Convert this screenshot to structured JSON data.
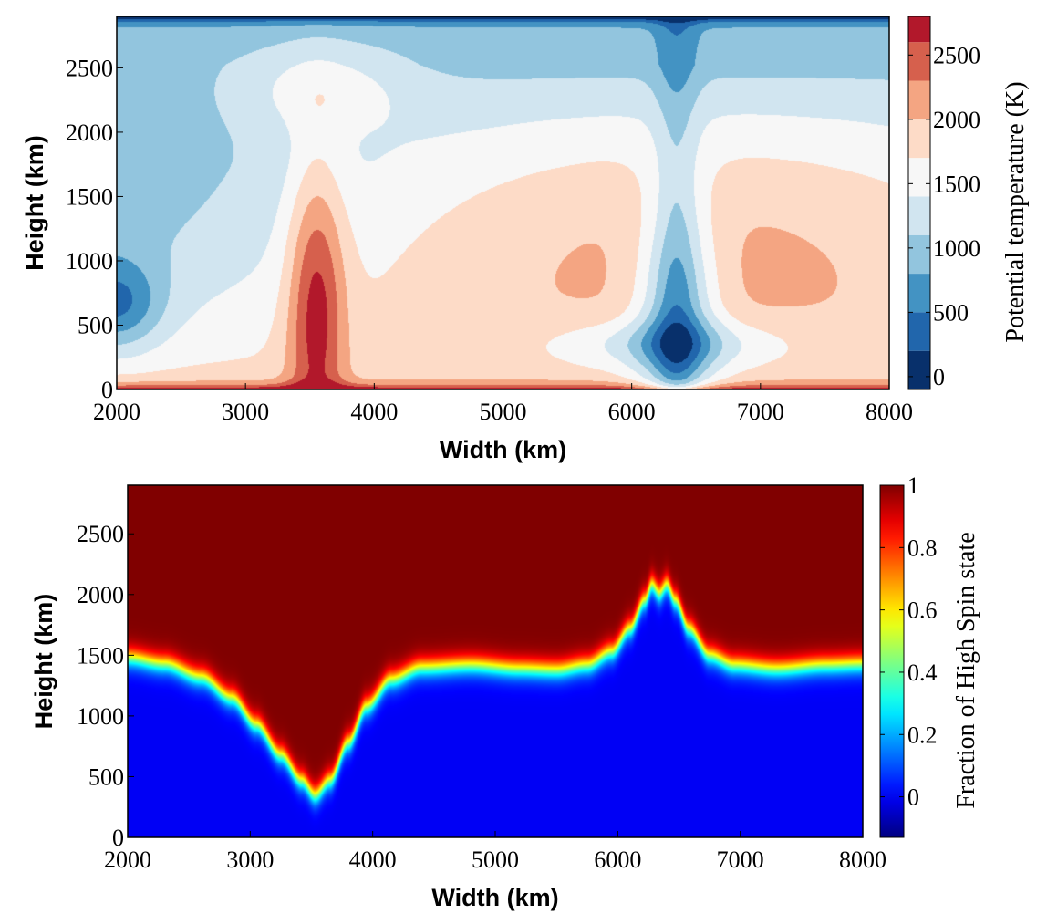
{
  "chart_data": [
    {
      "type": "heatmap",
      "subtype": "filled-contour",
      "xlabel": "Width (km)",
      "ylabel": "Height (km)",
      "xlim": [
        2000,
        8000
      ],
      "ylim": [
        0,
        2900
      ],
      "xticks": [
        2000,
        3000,
        4000,
        5000,
        6000,
        7000,
        8000
      ],
      "yticks": [
        0,
        500,
        1000,
        1500,
        2000,
        2500
      ],
      "colorbar": {
        "label": "Potential temperature (K)",
        "range": [
          -100,
          2800
        ],
        "ticks": [
          0,
          500,
          1000,
          1500,
          2000,
          2500
        ],
        "levels": [
          -100,
          200,
          500,
          800,
          1100,
          1400,
          1700,
          2000,
          2300,
          2600,
          2800
        ],
        "colors": [
          "#08306b",
          "#2166ac",
          "#4393c3",
          "#92c5de",
          "#d1e5f0",
          "#f7f7f7",
          "#fddbc7",
          "#f4a582",
          "#d6604d",
          "#b2182b",
          "#67001f"
        ]
      },
      "features": [
        {
          "kind": "hot-upwelling",
          "x": 3550,
          "y_base": 0,
          "y_top": 1720
        },
        {
          "kind": "hot-layer-top",
          "x_range": [
            3000,
            4100
          ],
          "y": 2300
        },
        {
          "kind": "cold-downwelling",
          "x": 6350,
          "y_base": 250,
          "y_top": 2900
        },
        {
          "kind": "cold-region-edge",
          "x": 2000,
          "y": 650
        }
      ]
    },
    {
      "type": "heatmap",
      "xlabel": "Width (km)",
      "ylabel": "Height (km)",
      "xlim": [
        2000,
        8000
      ],
      "ylim": [
        0,
        2900
      ],
      "xticks": [
        2000,
        3000,
        4000,
        5000,
        6000,
        7000,
        8000
      ],
      "yticks": [
        0,
        500,
        1000,
        1500,
        2000,
        2500
      ],
      "colorbar": {
        "label": "Fraction of High Spin state",
        "range": [
          -0.13,
          1.0
        ],
        "ticks": [
          0,
          0.2,
          0.4,
          0.6,
          0.8,
          1
        ],
        "tick_labels": [
          "0",
          "0.2",
          "0.4",
          "0.6",
          "0.8",
          "1"
        ],
        "colormap": "jet"
      },
      "low_value": 0,
      "high_value": 1,
      "transition_width_km": 150,
      "transition_height": [
        {
          "x": 2000,
          "y": 1480
        },
        {
          "x": 2300,
          "y": 1430
        },
        {
          "x": 2600,
          "y": 1320
        },
        {
          "x": 2850,
          "y": 1150
        },
        {
          "x": 3050,
          "y": 930
        },
        {
          "x": 3250,
          "y": 680
        },
        {
          "x": 3420,
          "y": 470
        },
        {
          "x": 3530,
          "y": 350
        },
        {
          "x": 3650,
          "y": 470
        },
        {
          "x": 3800,
          "y": 780
        },
        {
          "x": 3950,
          "y": 1080
        },
        {
          "x": 4150,
          "y": 1300
        },
        {
          "x": 4400,
          "y": 1400
        },
        {
          "x": 4800,
          "y": 1420
        },
        {
          "x": 5200,
          "y": 1390
        },
        {
          "x": 5500,
          "y": 1380
        },
        {
          "x": 5750,
          "y": 1420
        },
        {
          "x": 5950,
          "y": 1530
        },
        {
          "x": 6100,
          "y": 1720
        },
        {
          "x": 6220,
          "y": 1950
        },
        {
          "x": 6280,
          "y": 2080
        },
        {
          "x": 6340,
          "y": 2010
        },
        {
          "x": 6400,
          "y": 2080
        },
        {
          "x": 6470,
          "y": 1950
        },
        {
          "x": 6580,
          "y": 1720
        },
        {
          "x": 6750,
          "y": 1500
        },
        {
          "x": 6950,
          "y": 1420
        },
        {
          "x": 7300,
          "y": 1390
        },
        {
          "x": 7700,
          "y": 1420
        },
        {
          "x": 8000,
          "y": 1430
        }
      ]
    }
  ]
}
